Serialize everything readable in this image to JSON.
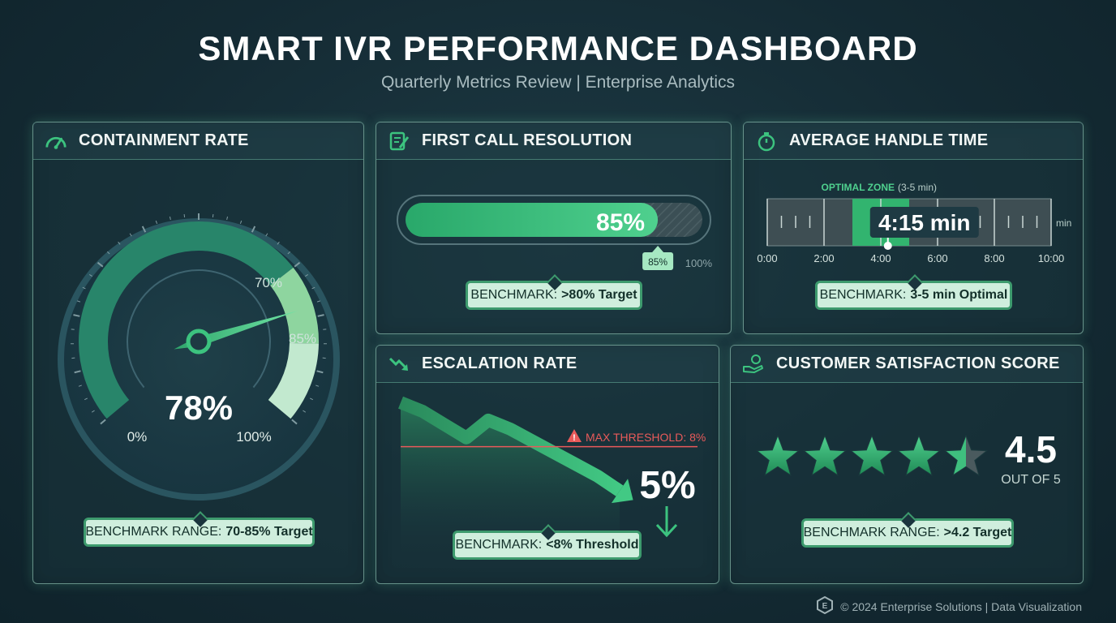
{
  "header": {
    "title": "SMART IVR PERFORMANCE DASHBOARD",
    "subtitle": "Quarterly Metrics Review | Enterprise Analytics"
  },
  "colors": {
    "accent": "#3cc37f",
    "accent_light": "#a6e8c2",
    "alert": "#e85a5a",
    "background": "#142a33"
  },
  "panels": {
    "containment": {
      "title": "CONTAINMENT RATE",
      "icon": "gauge-icon",
      "value_label": "78%",
      "min_label": "0%",
      "max_label": "100%",
      "mark70_label": "70%",
      "mark85_label": "85%",
      "bench_label": "BENCHMARK RANGE:",
      "bench_value": "70-85% Target"
    },
    "fcr": {
      "title": "FIRST CALL RESOLUTION",
      "icon": "checklist-icon",
      "value_label": "85%",
      "marker_label": "85%",
      "end_label": "100%",
      "bench_label": "BENCHMARK:",
      "bench_value": ">80% Target"
    },
    "aht": {
      "title": "AVERAGE HANDLE TIME",
      "icon": "stopwatch-icon",
      "zone_label": "OPTIMAL ZONE",
      "zone_range": "(3-5 min)",
      "value_label": "4:15 min",
      "unit": "min",
      "tick_labels": [
        "0:00",
        "2:00",
        "4:00",
        "6:00",
        "8:00",
        "10:00"
      ],
      "bench_label": "BENCHMARK:",
      "bench_value": "3-5 min Optimal"
    },
    "escalation": {
      "title": "ESCALATION RATE",
      "icon": "trend-down-icon",
      "threshold_label": "MAX THRESHOLD: 8%",
      "value_label": "5%",
      "bench_label": "BENCHMARK:",
      "bench_value": "<8% Threshold"
    },
    "csat": {
      "title": "CUSTOMER SATISFACTION SCORE",
      "icon": "hand-coin-icon",
      "value_label": "4.5",
      "out_of_label": "OUT OF 5",
      "bench_label": "BENCHMARK RANGE:",
      "bench_value": ">4.2 Target"
    }
  },
  "footer": {
    "text": "© 2024 Enterprise Solutions | Data Visualization"
  },
  "chart_data": [
    {
      "type": "gauge",
      "title": "CONTAINMENT RATE",
      "value": 78,
      "min": 0,
      "max": 100,
      "target_range": [
        70,
        85
      ],
      "unit": "%"
    },
    {
      "type": "progress",
      "title": "FIRST CALL RESOLUTION",
      "value": 85,
      "max": 100,
      "target": 80,
      "unit": "%"
    },
    {
      "type": "range-bar",
      "title": "AVERAGE HANDLE TIME",
      "value_minutes": 4.25,
      "min": 0,
      "max": 10,
      "optimal_range": [
        3,
        5
      ],
      "ticks": [
        0,
        2,
        4,
        6,
        8,
        10
      ]
    },
    {
      "type": "area",
      "title": "ESCALATION RATE",
      "trend": "decreasing",
      "points": [
        11,
        10.4,
        9.5,
        8.6,
        9.8,
        9.2,
        8.4,
        7.6,
        6.8,
        6.0,
        5.0
      ],
      "threshold": 8,
      "current": 5,
      "unit": "%"
    },
    {
      "type": "rating",
      "title": "CUSTOMER SATISFACTION SCORE",
      "value": 4.5,
      "max": 5,
      "target": 4.2
    }
  ]
}
